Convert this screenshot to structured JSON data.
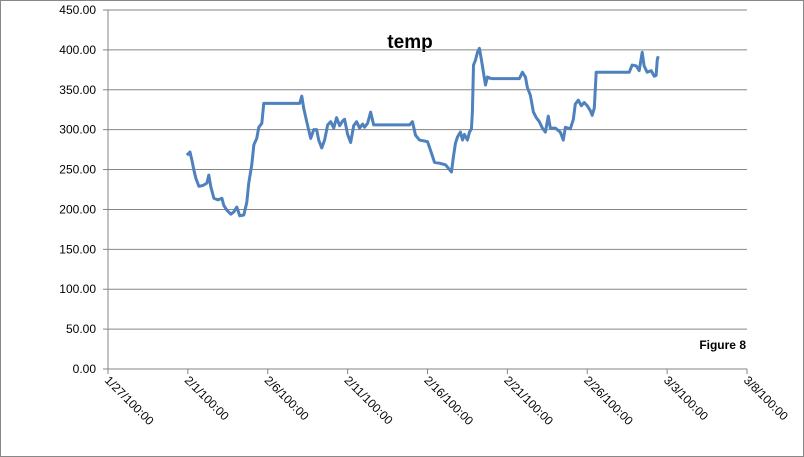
{
  "chart_data": {
    "type": "line",
    "title": "temp",
    "annotation": "Figure 8",
    "ylim": [
      0,
      450
    ],
    "yticks": [
      {
        "value": 0,
        "label": "0.00"
      },
      {
        "value": 50,
        "label": "50.00"
      },
      {
        "value": 100,
        "label": "100.00"
      },
      {
        "value": 150,
        "label": "150.00"
      },
      {
        "value": 200,
        "label": "200.00"
      },
      {
        "value": 250,
        "label": "250.00"
      },
      {
        "value": 300,
        "label": "300.00"
      },
      {
        "value": 350,
        "label": "350.00"
      },
      {
        "value": 400,
        "label": "400.00"
      },
      {
        "value": 450,
        "label": "450.00"
      }
    ],
    "xlim": [
      27,
      67
    ],
    "xticks": [
      {
        "value": 27,
        "label": "1/27/100:00"
      },
      {
        "value": 32,
        "label": "2/1/100:00"
      },
      {
        "value": 37,
        "label": "2/6/100:00"
      },
      {
        "value": 42,
        "label": "2/11/100:00"
      },
      {
        "value": 47,
        "label": "2/16/100:00"
      },
      {
        "value": 52,
        "label": "2/21/100:00"
      },
      {
        "value": 57,
        "label": "2/26/100:00"
      },
      {
        "value": 62,
        "label": "3/3/100:00"
      },
      {
        "value": 67,
        "label": "3/8/100:00"
      }
    ],
    "grid": true,
    "series": [
      {
        "name": "temp",
        "color": "#4f81bd",
        "x": [
          31.94,
          32.13,
          32.25,
          32.38,
          32.5,
          32.69,
          32.94,
          33.19,
          33.31,
          33.44,
          33.63,
          33.88,
          34.13,
          34.25,
          34.44,
          34.69,
          34.88,
          35.06,
          35.25,
          35.5,
          35.69,
          35.81,
          36,
          36.13,
          36.31,
          36.44,
          36.63,
          36.75,
          37,
          39,
          39.13,
          39.25,
          39.44,
          39.69,
          39.88,
          40.06,
          40.19,
          40.38,
          40.56,
          40.75,
          40.94,
          41.13,
          41.31,
          41.5,
          41.69,
          41.81,
          42,
          42.19,
          42.38,
          42.56,
          42.75,
          42.94,
          43.06,
          43.25,
          43.44,
          43.63,
          43.88,
          45.88,
          46.06,
          46.25,
          46.5,
          47,
          47.19,
          47.44,
          47.75,
          48.13,
          48.5,
          48.63,
          48.75,
          48.88,
          49.06,
          49.19,
          49.31,
          49.5,
          49.63,
          49.75,
          49.81,
          49.88,
          50,
          50.13,
          50.25,
          50.38,
          50.5,
          50.63,
          50.75,
          51,
          52.75,
          52.94,
          53.13,
          53.25,
          53.44,
          53.63,
          53.81,
          54,
          54.19,
          54.38,
          54.56,
          54.69,
          55,
          55.31,
          55.5,
          55.63,
          55.94,
          56.13,
          56.25,
          56.44,
          56.63,
          56.81,
          57,
          57.19,
          57.31,
          57.44,
          57.56,
          59.63,
          59.81,
          60.06,
          60.25,
          60.44,
          60.56,
          60.75,
          61,
          61.19,
          61.31,
          61.38,
          61.44
        ],
        "values": [
          268,
          272,
          262,
          249,
          239,
          229,
          230,
          233,
          243,
          228,
          214,
          212,
          214,
          205,
          199,
          194,
          197,
          203,
          192,
          193,
          209,
          233,
          256,
          281,
          289,
          303,
          308,
          333,
          333,
          333,
          342,
          327,
          310,
          289,
          300,
          300,
          287,
          277,
          287,
          306,
          310,
          302,
          315,
          305,
          311,
          313,
          294,
          284,
          305,
          310,
          302,
          307,
          303,
          308,
          322,
          306,
          306,
          306,
          310,
          293,
          287,
          285,
          274,
          259,
          258,
          256,
          247,
          267,
          283,
          291,
          297,
          287,
          294,
          287,
          297,
          301,
          322,
          381,
          387,
          397,
          402,
          387,
          372,
          356,
          366,
          364,
          364,
          372,
          366,
          353,
          343,
          322,
          315,
          310,
          302,
          297,
          317,
          302,
          302,
          297,
          287,
          303,
          301,
          313,
          332,
          337,
          330,
          334,
          330,
          324,
          318,
          327,
          372,
          372,
          381,
          380,
          374,
          397,
          380,
          372,
          374,
          367,
          368,
          387,
          392
        ]
      }
    ]
  }
}
